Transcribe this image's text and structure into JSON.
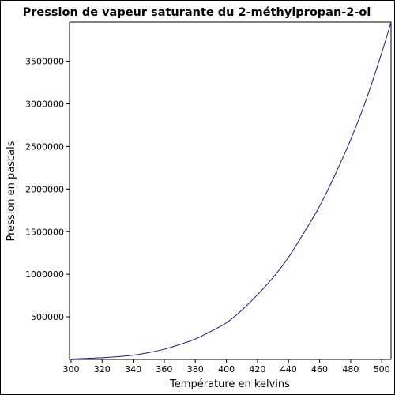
{
  "chart_data": {
    "type": "line",
    "title": "Pression de vapeur saturante du 2-méthylpropan-2-ol",
    "xlabel": "Température en kelvins",
    "ylabel": "Pression en pascals",
    "xlim": [
      299,
      506
    ],
    "ylim": [
      0,
      3960000
    ],
    "xticks": [
      300,
      320,
      340,
      360,
      380,
      400,
      420,
      440,
      460,
      480,
      500
    ],
    "yticks": [
      500000,
      1000000,
      1500000,
      2000000,
      2500000,
      3000000,
      3500000
    ],
    "grid": false,
    "line_color": "#1a1a8c",
    "series": [
      {
        "x": [
          300,
          310,
          320,
          330,
          340,
          350,
          360,
          370,
          380,
          390,
          400,
          410,
          420,
          430,
          440,
          450,
          460,
          470,
          480,
          490,
          500,
          506
        ],
        "y": [
          5000,
          12000,
          20000,
          32000,
          50000,
          80000,
          120000,
          175000,
          240000,
          330000,
          430000,
          580000,
          760000,
          960000,
          1200000,
          1490000,
          1800000,
          2170000,
          2580000,
          3050000,
          3600000,
          3960000
        ]
      }
    ]
  }
}
